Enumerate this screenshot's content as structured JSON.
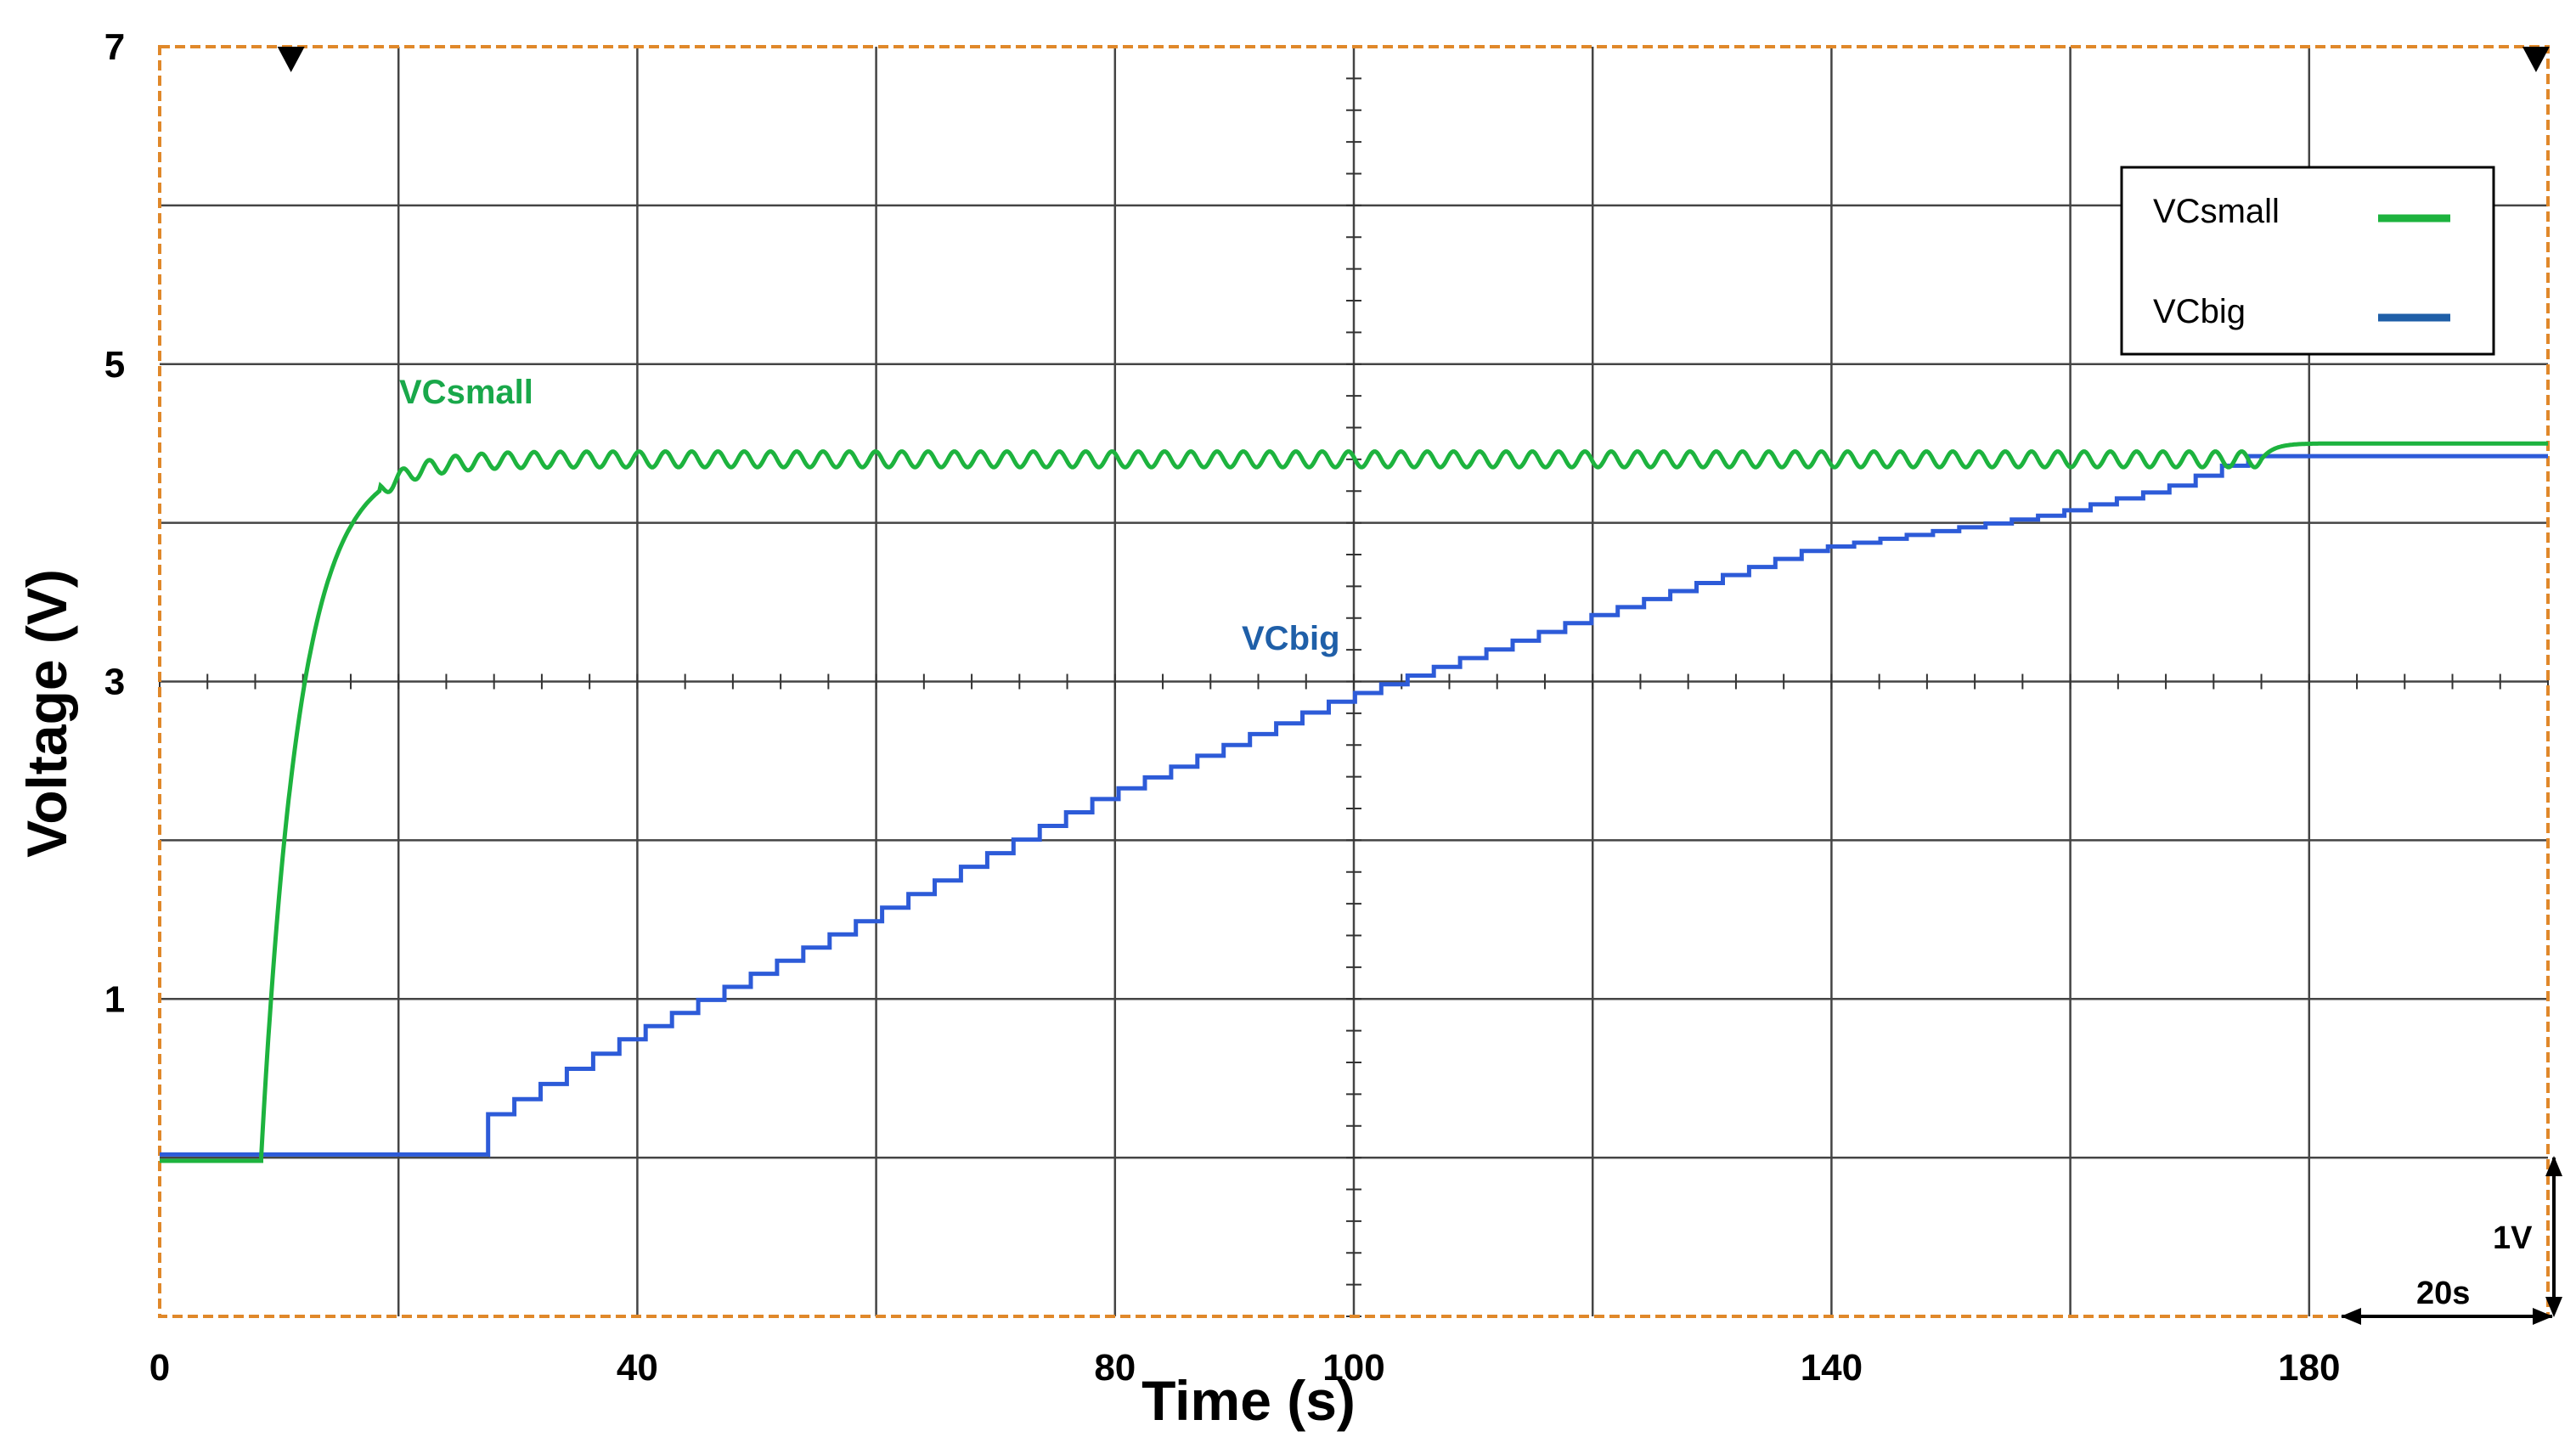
{
  "chart_data": {
    "type": "line",
    "title": "",
    "xlabel": "Time (s)",
    "ylabel": "Voltage (V)",
    "xlim": [
      0,
      200
    ],
    "ylim": [
      -1,
      7
    ],
    "x_tick_labels": [
      {
        "x": 0,
        "label": "0"
      },
      {
        "x": 40,
        "label": "40"
      },
      {
        "x": 80,
        "label": "80"
      },
      {
        "x": 100,
        "label": "100"
      },
      {
        "x": 140,
        "label": "140"
      },
      {
        "x": 180,
        "label": "180"
      }
    ],
    "y_tick_labels": [
      {
        "y": 7,
        "label": "7"
      },
      {
        "y": 5,
        "label": "5"
      },
      {
        "y": 3,
        "label": "3"
      },
      {
        "y": 1,
        "label": "1"
      }
    ],
    "grid": true,
    "legend": {
      "position": "top-right",
      "entries": [
        "VCsmall",
        "VCbig"
      ]
    },
    "trace_labels": {
      "small": "VCsmall",
      "big": "VCbig"
    },
    "scale_labels": {
      "volts_per_div": "1V",
      "time_per_div": "20s"
    },
    "trigger_marker_times": [
      11,
      199
    ],
    "colors": {
      "small": "#1db33e",
      "big": "#2d5bd8",
      "small_label": "#19a84a",
      "big_label": "#1f5fa8",
      "border": "#e0882a",
      "grid": "#444444"
    },
    "series": [
      {
        "name": "VCsmall",
        "model": "rc_charge",
        "start": 8.5,
        "tau": 3.2,
        "initial": 0.0,
        "final": 4.4,
        "ripple_amplitude": 0.05,
        "ripple_period": 2.2,
        "ripple_until": 176,
        "end_time": 200
      },
      {
        "name": "VCbig",
        "model": "step_charge",
        "start": 27.5,
        "step_interval": 2.2,
        "initial": 0.0,
        "final_level": 4.42,
        "reach_time": 177,
        "end_time": 200,
        "points": [
          [
            0,
            0.0
          ],
          [
            27.5,
            0.0
          ],
          [
            28,
            0.2
          ],
          [
            40,
            0.72
          ],
          [
            60,
            1.47
          ],
          [
            80,
            2.25
          ],
          [
            100,
            2.87
          ],
          [
            120,
            3.37
          ],
          [
            140,
            3.83
          ],
          [
            160,
            4.05
          ],
          [
            170,
            4.22
          ],
          [
            177,
            4.42
          ],
          [
            200,
            4.42
          ]
        ]
      }
    ]
  }
}
